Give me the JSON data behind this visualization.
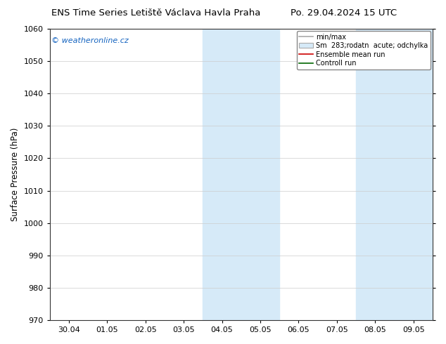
{
  "title_left": "ENS Time Series Letiště Václava Havla Praha",
  "title_right": "Po. 29.04.2024 15 UTC",
  "ylabel": "Surface Pressure (hPa)",
  "ylim": [
    970,
    1060
  ],
  "yticks": [
    970,
    980,
    990,
    1000,
    1010,
    1020,
    1030,
    1040,
    1050,
    1060
  ],
  "x_tick_labels": [
    "30.04",
    "01.05",
    "02.05",
    "03.05",
    "04.05",
    "05.05",
    "06.05",
    "07.05",
    "08.05",
    "09.05"
  ],
  "shaded_bands": [
    {
      "start_day": 4,
      "end_day": 6
    },
    {
      "start_day": 8,
      "end_day": 10
    }
  ],
  "shaded_color": "#d6eaf8",
  "watermark_text": "© weatheronline.cz",
  "watermark_color": "#1564c0",
  "legend_minmax_color": "#aaaaaa",
  "legend_spread_color": "#d6eaf8",
  "legend_spread_edge": "#aaaaaa",
  "legend_ensemble_color": "#cc0000",
  "legend_control_color": "#006600",
  "background_color": "#ffffff",
  "grid_color": "#cccccc",
  "spine_color": "#333333",
  "title_fontsize": 9.5,
  "ylabel_fontsize": 8.5,
  "tick_fontsize": 8,
  "legend_fontsize": 7,
  "watermark_fontsize": 8
}
